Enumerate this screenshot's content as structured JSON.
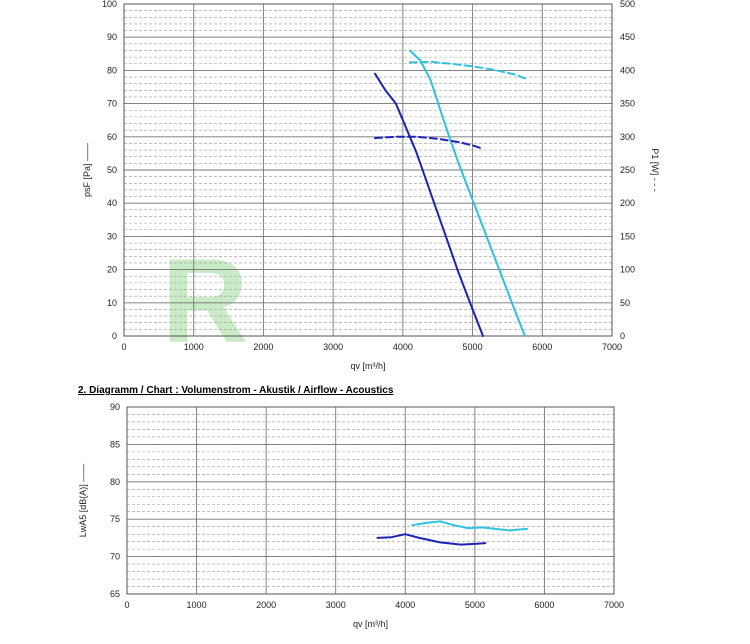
{
  "colors": {
    "dark_series": "#1d23b4",
    "light_series": "#2ec3e0",
    "grid_major": "#777777",
    "grid_minor": "#9a9a9a",
    "axis_text": "#222222",
    "watermark": "#c9ebc6"
  },
  "watermark": {
    "text": "R"
  },
  "section2_title": "2. Diagramm / Chart :   Volumenstrom - Akustik / Airflow - Acoustics",
  "chart_data": [
    {
      "type": "line",
      "title": "",
      "xlabel": "qv [m³/h]",
      "ylabel": "psF [Pa] ——",
      "y2label": "P1 [W] - - -",
      "xlim": [
        0,
        7000
      ],
      "ylim": [
        0,
        100
      ],
      "y2lim": [
        0,
        500
      ],
      "xticks": [
        "0",
        "1000",
        "2000",
        "3000",
        "4000",
        "5000",
        "6000",
        "7000"
      ],
      "yticks": [
        "0",
        "10",
        "20",
        "30",
        "40",
        "50",
        "60",
        "70",
        "80",
        "90",
        "100"
      ],
      "y2ticks": [
        "0",
        "50",
        "100",
        "150",
        "200",
        "250",
        "300",
        "350",
        "400",
        "450",
        "500"
      ],
      "grid": true,
      "series": [
        {
          "axis": "left",
          "style": "solid",
          "color": "#1d23b4",
          "x": [
            3600,
            3750,
            3900,
            4000,
            4200,
            4400,
            4600,
            4800,
            5000,
            5150
          ],
          "y": [
            79,
            74,
            70,
            65,
            55,
            43,
            31,
            19,
            8,
            0
          ]
        },
        {
          "axis": "left",
          "style": "solid",
          "color": "#2ec3e0",
          "x": [
            4100,
            4250,
            4400,
            4600,
            4800,
            5000,
            5200,
            5400,
            5600,
            5750
          ],
          "y": [
            86,
            83,
            77,
            64,
            52,
            41,
            30,
            19,
            8,
            0
          ]
        },
        {
          "axis": "right",
          "style": "dashed",
          "color": "#1d23b4",
          "x": [
            3600,
            3900,
            4200,
            4500,
            4800,
            5000,
            5150
          ],
          "y": [
            298,
            300,
            300,
            297,
            292,
            287,
            282
          ]
        },
        {
          "axis": "right",
          "style": "dashed",
          "color": "#2ec3e0",
          "x": [
            4100,
            4400,
            4700,
            5000,
            5300,
            5600,
            5750
          ],
          "y": [
            412,
            413,
            410,
            406,
            401,
            394,
            388
          ]
        }
      ]
    },
    {
      "type": "line",
      "title": "",
      "xlabel": "qv [m³/h]",
      "ylabel": "LwA5 [dB(A)] ——",
      "xlim": [
        0,
        7000
      ],
      "ylim": [
        65,
        90
      ],
      "xticks": [
        "0",
        "1000",
        "2000",
        "3000",
        "4000",
        "5000",
        "6000",
        "7000"
      ],
      "yticks": [
        "65",
        "70",
        "75",
        "80",
        "85",
        "90"
      ],
      "grid": true,
      "series": [
        {
          "axis": "left",
          "style": "solid",
          "color": "#1d23b4",
          "x": [
            3600,
            3800,
            4000,
            4200,
            4500,
            4800,
            5000,
            5150
          ],
          "y": [
            72.5,
            72.6,
            73.0,
            72.5,
            71.9,
            71.6,
            71.7,
            71.8
          ]
        },
        {
          "axis": "left",
          "style": "solid",
          "color": "#2ec3e0",
          "x": [
            4100,
            4300,
            4500,
            4700,
            4900,
            5100,
            5300,
            5500,
            5750
          ],
          "y": [
            74.2,
            74.5,
            74.7,
            74.2,
            73.8,
            73.9,
            73.7,
            73.5,
            73.7
          ]
        }
      ]
    }
  ]
}
